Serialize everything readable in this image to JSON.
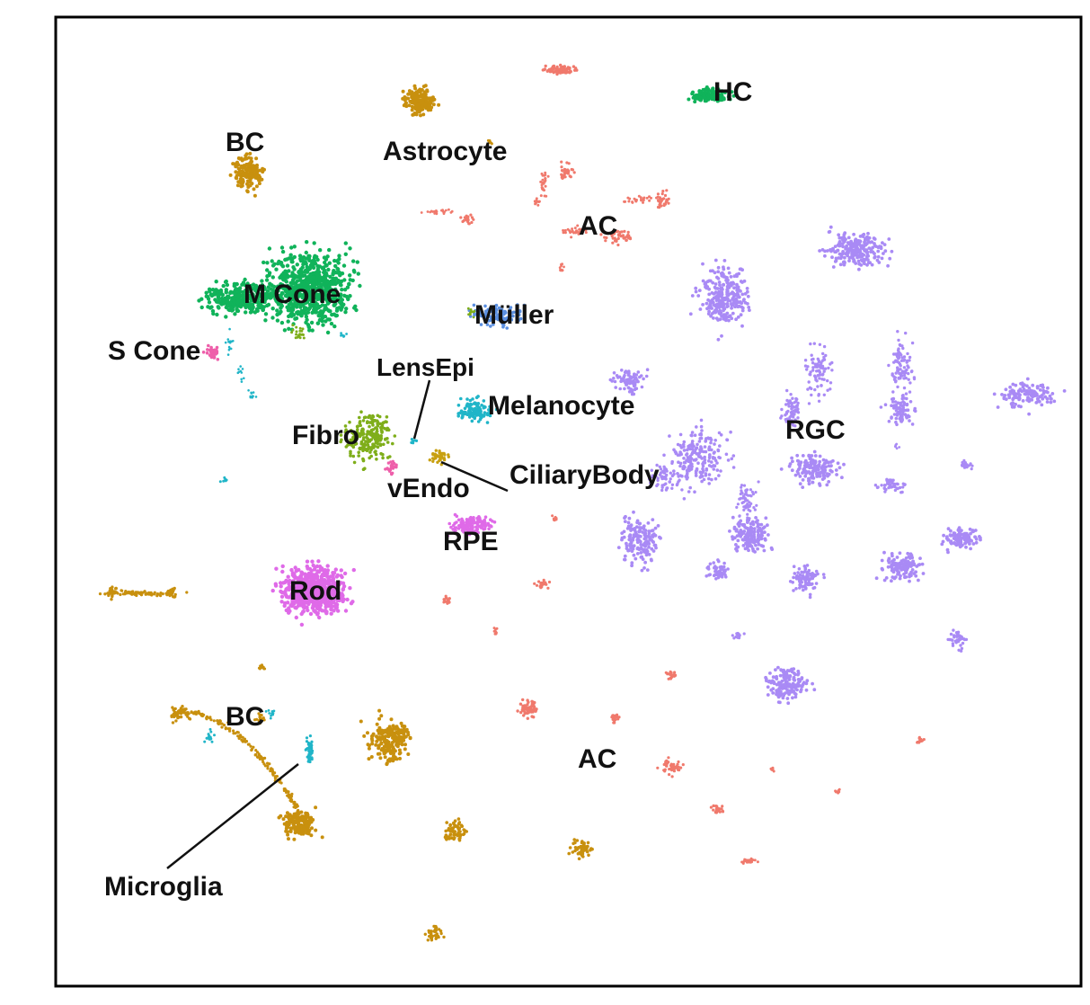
{
  "chart_data": {
    "type": "scatter",
    "title": "",
    "xlabel": "",
    "ylabel": "",
    "grid": false,
    "legend": "none",
    "colors": {
      "green": "#10b35a",
      "gold": "#c8900e",
      "salmon": "#f0796c",
      "purple": "#a98af5",
      "blue": "#5b8fe0",
      "cyan": "#20b5c8",
      "olive": "#7fae1a",
      "pink": "#ee5faa",
      "magenta": "#df6ae8",
      "tan": "#c8a010"
    },
    "cluster_labels": [
      {
        "text": "HC"
      },
      {
        "text": "Astrocyte"
      },
      {
        "text": "BC"
      },
      {
        "text": "AC"
      },
      {
        "text": "M Cone"
      },
      {
        "text": "Müller"
      },
      {
        "text": "S Cone"
      },
      {
        "text": "LensEpi"
      },
      {
        "text": "Melanocyte"
      },
      {
        "text": "RGC"
      },
      {
        "text": "Fibro"
      },
      {
        "text": "CiliaryBody"
      },
      {
        "text": "vEndo"
      },
      {
        "text": "RPE"
      },
      {
        "text": "Rod"
      },
      {
        "text": "BC"
      },
      {
        "text": "AC"
      },
      {
        "text": "Microglia"
      }
    ]
  }
}
